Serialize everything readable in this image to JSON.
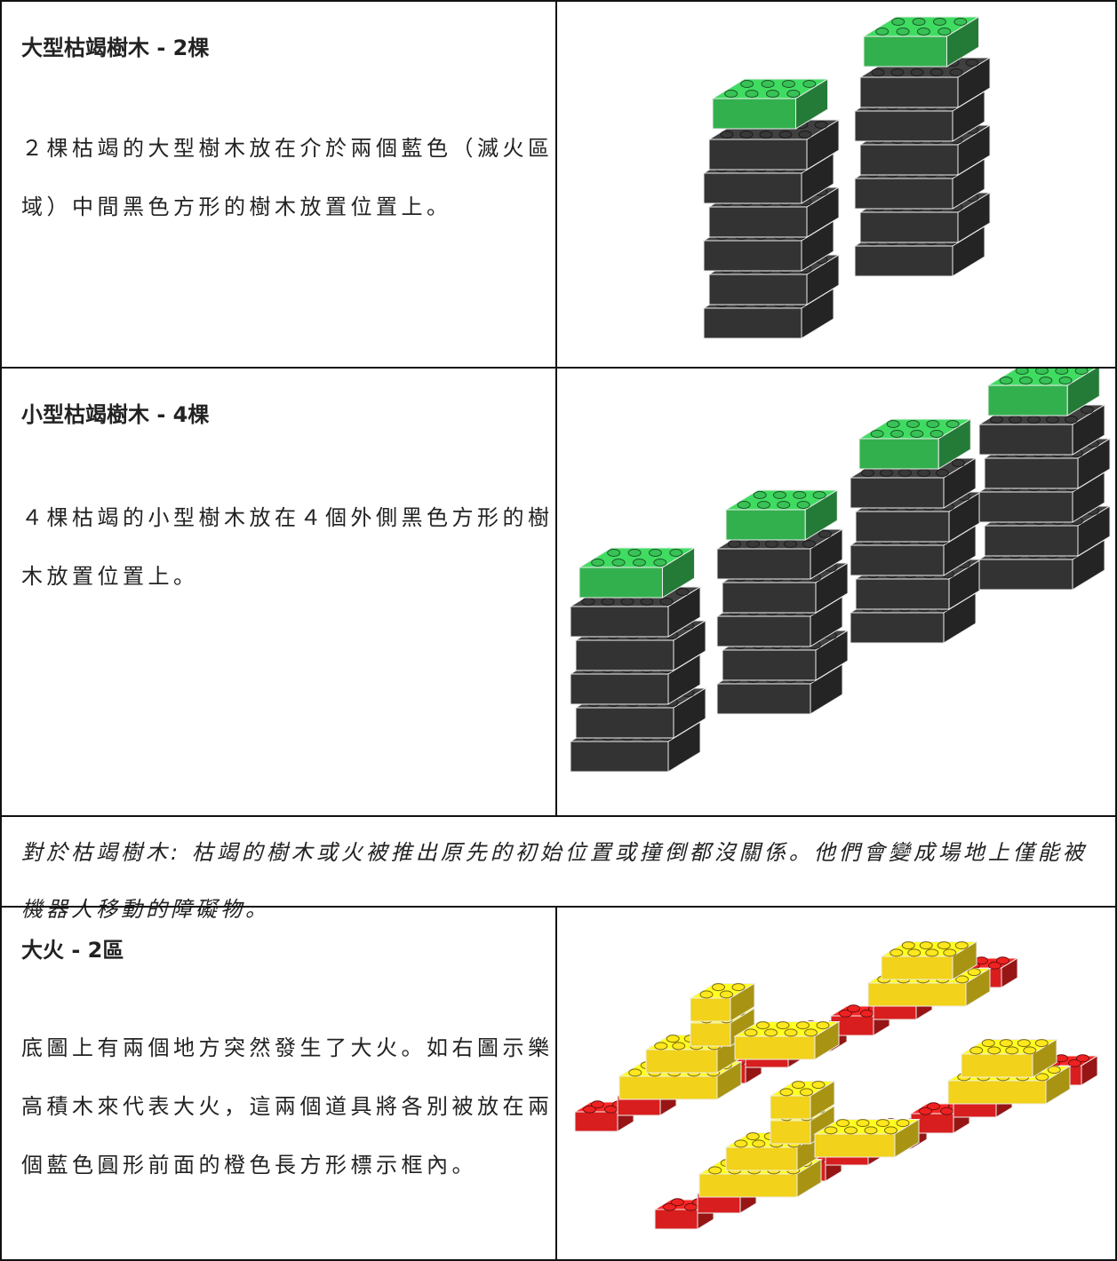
{
  "rows": [
    {
      "title": "大型枯竭樹木 - 2棵",
      "text": "２棵枯竭的大型樹木放在介於兩個藍色（滅火區域）中間黑色方形的樹木放置位置上。"
    },
    {
      "title": "小型枯竭樹木 - 4棵",
      "text": "４棵枯竭的小型樹木放在４個外側黑色方形的樹木放置位置上。"
    },
    {
      "note": "對於枯竭樹木: 枯竭的樹木或火被推出原先的初始位置或撞倒都沒關係。他們會變成場地上僅能被機器人移動的障礙物。"
    },
    {
      "title": "大火 - 2區",
      "text": "底圖上有兩個地方突然發生了大火。如右圖示樂高積木來代表大火，這兩個道具將各別被放在兩個藍色圓形前面的橙色長方形標示框內。"
    }
  ]
}
